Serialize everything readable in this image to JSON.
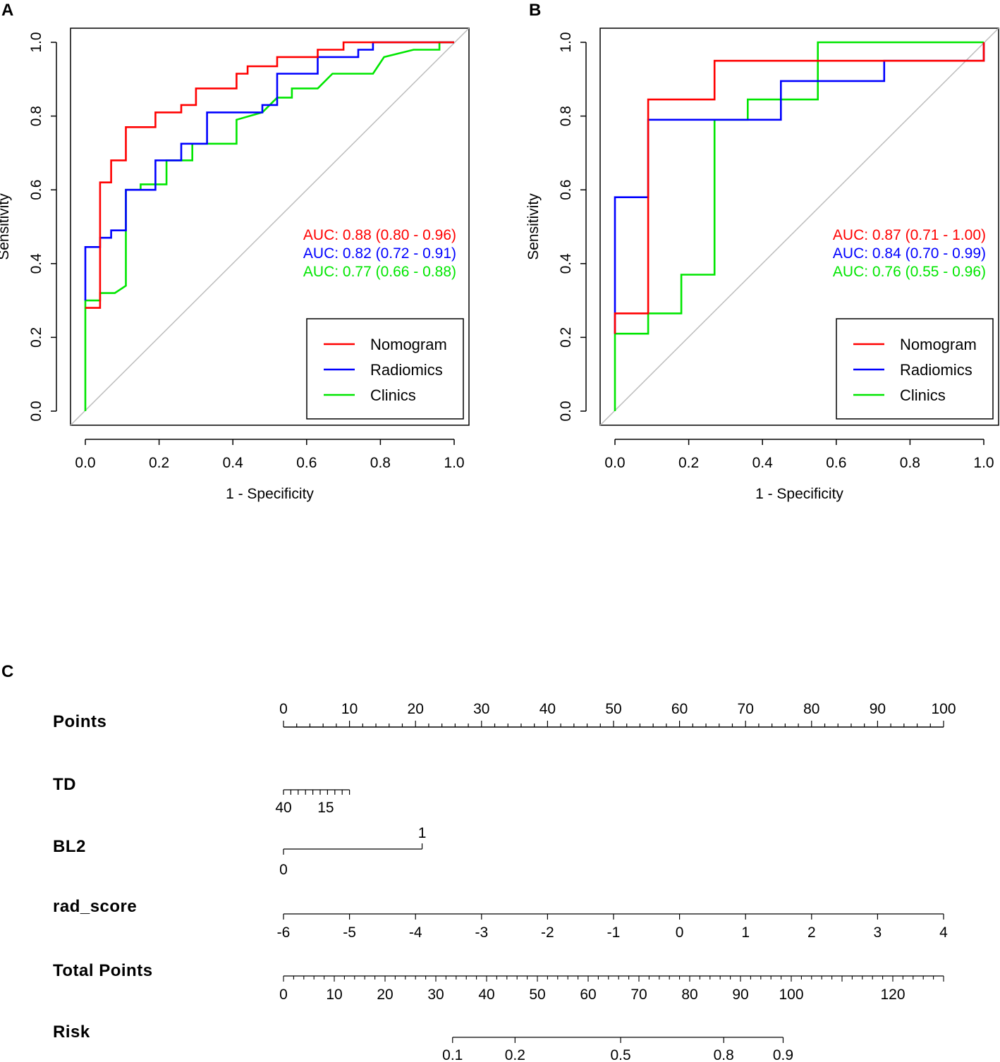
{
  "colors": {
    "nomogram": "#ff0000",
    "radiomics": "#0000ff",
    "clinics": "#00e600",
    "diagonal": "#bdbdbd",
    "axis": "#000000"
  },
  "chart_data": [
    {
      "panel": "A",
      "type": "line",
      "title": "",
      "xlabel": "1 - Specificity",
      "ylabel": "Sensitivity",
      "xlim": [
        0,
        1
      ],
      "ylim": [
        0,
        1
      ],
      "xticks": [
        "0.0",
        "0.2",
        "0.4",
        "0.6",
        "0.8",
        "1.0"
      ],
      "yticks": [
        "0.0",
        "0.2",
        "0.4",
        "0.6",
        "0.8",
        "1.0"
      ],
      "auc_labels": [
        "AUC: 0.88 (0.80 - 0.96)",
        "AUC: 0.82 (0.72 - 0.91)",
        "AUC: 0.77 (0.66 - 0.88)"
      ],
      "legend": [
        "Nomogram",
        "Radiomics",
        "Clinics"
      ],
      "legend_position": "bottom-right",
      "series": [
        {
          "name": "Nomogram",
          "color": "red",
          "points": [
            [
              0,
              0.28
            ],
            [
              0.04,
              0.28
            ],
            [
              0.04,
              0.62
            ],
            [
              0.07,
              0.62
            ],
            [
              0.07,
              0.68
            ],
            [
              0.11,
              0.68
            ],
            [
              0.11,
              0.77
            ],
            [
              0.19,
              0.77
            ],
            [
              0.19,
              0.81
            ],
            [
              0.26,
              0.81
            ],
            [
              0.26,
              0.83
            ],
            [
              0.3,
              0.83
            ],
            [
              0.3,
              0.875
            ],
            [
              0.41,
              0.875
            ],
            [
              0.41,
              0.915
            ],
            [
              0.44,
              0.915
            ],
            [
              0.44,
              0.935
            ],
            [
              0.52,
              0.935
            ],
            [
              0.52,
              0.96
            ],
            [
              0.63,
              0.96
            ],
            [
              0.63,
              0.98
            ],
            [
              0.7,
              0.98
            ],
            [
              0.7,
              1.0
            ],
            [
              1.0,
              1.0
            ]
          ]
        },
        {
          "name": "Radiomics",
          "color": "blue",
          "points": [
            [
              0,
              0.3
            ],
            [
              0,
              0.445
            ],
            [
              0.04,
              0.445
            ],
            [
              0.04,
              0.47
            ],
            [
              0.07,
              0.47
            ],
            [
              0.07,
              0.49
            ],
            [
              0.11,
              0.49
            ],
            [
              0.11,
              0.6
            ],
            [
              0.19,
              0.6
            ],
            [
              0.19,
              0.68
            ],
            [
              0.26,
              0.68
            ],
            [
              0.26,
              0.725
            ],
            [
              0.33,
              0.725
            ],
            [
              0.33,
              0.81
            ],
            [
              0.48,
              0.81
            ],
            [
              0.48,
              0.83
            ],
            [
              0.52,
              0.83
            ],
            [
              0.52,
              0.915
            ],
            [
              0.63,
              0.915
            ],
            [
              0.63,
              0.96
            ],
            [
              0.74,
              0.96
            ],
            [
              0.74,
              0.98
            ],
            [
              0.78,
              0.98
            ],
            [
              0.78,
              1.0
            ],
            [
              1.0,
              1.0
            ]
          ]
        },
        {
          "name": "Clinics",
          "color": "green",
          "points": [
            [
              0,
              0
            ],
            [
              0,
              0.3
            ],
            [
              0.04,
              0.3
            ],
            [
              0.04,
              0.32
            ],
            [
              0.08,
              0.32
            ],
            [
              0.11,
              0.34
            ],
            [
              0.11,
              0.6
            ],
            [
              0.15,
              0.6
            ],
            [
              0.15,
              0.615
            ],
            [
              0.22,
              0.615
            ],
            [
              0.22,
              0.68
            ],
            [
              0.29,
              0.68
            ],
            [
              0.29,
              0.725
            ],
            [
              0.41,
              0.725
            ],
            [
              0.41,
              0.79
            ],
            [
              0.48,
              0.81
            ],
            [
              0.52,
              0.85
            ],
            [
              0.56,
              0.85
            ],
            [
              0.56,
              0.875
            ],
            [
              0.63,
              0.875
            ],
            [
              0.67,
              0.915
            ],
            [
              0.78,
              0.915
            ],
            [
              0.81,
              0.96
            ],
            [
              0.89,
              0.98
            ],
            [
              0.96,
              0.98
            ],
            [
              0.96,
              1.0
            ],
            [
              1.0,
              1.0
            ]
          ]
        }
      ]
    },
    {
      "panel": "B",
      "type": "line",
      "title": "",
      "xlabel": "1 - Specificity",
      "ylabel": "Sensitivity",
      "xlim": [
        0,
        1
      ],
      "ylim": [
        0,
        1
      ],
      "xticks": [
        "0.0",
        "0.2",
        "0.4",
        "0.6",
        "0.8",
        "1.0"
      ],
      "yticks": [
        "0.0",
        "0.2",
        "0.4",
        "0.6",
        "0.8",
        "1.0"
      ],
      "auc_labels": [
        "AUC: 0.87 (0.71 - 1.00)",
        "AUC: 0.84 (0.70 - 0.99)",
        "AUC: 0.76 (0.55 - 0.96)"
      ],
      "legend": [
        "Nomogram",
        "Radiomics",
        "Clinics"
      ],
      "legend_position": "bottom-right",
      "series": [
        {
          "name": "Nomogram",
          "color": "red",
          "points": [
            [
              0,
              0.21
            ],
            [
              0,
              0.265
            ],
            [
              0.09,
              0.265
            ],
            [
              0.09,
              0.845
            ],
            [
              0.27,
              0.845
            ],
            [
              0.27,
              0.95
            ],
            [
              1.0,
              0.95
            ],
            [
              1.0,
              1.0
            ]
          ]
        },
        {
          "name": "Radiomics",
          "color": "blue",
          "points": [
            [
              0,
              0.21
            ],
            [
              0,
              0.58
            ],
            [
              0.09,
              0.58
            ],
            [
              0.09,
              0.79
            ],
            [
              0.45,
              0.79
            ],
            [
              0.45,
              0.895
            ],
            [
              0.73,
              0.895
            ],
            [
              0.73,
              0.95
            ],
            [
              1.0,
              0.95
            ],
            [
              1.0,
              1.0
            ]
          ]
        },
        {
          "name": "Clinics",
          "color": "green",
          "points": [
            [
              0,
              0
            ],
            [
              0,
              0.21
            ],
            [
              0.09,
              0.21
            ],
            [
              0.09,
              0.265
            ],
            [
              0.18,
              0.265
            ],
            [
              0.18,
              0.37
            ],
            [
              0.27,
              0.37
            ],
            [
              0.27,
              0.79
            ],
            [
              0.36,
              0.79
            ],
            [
              0.36,
              0.845
            ],
            [
              0.55,
              0.845
            ],
            [
              0.55,
              1.0
            ],
            [
              1.0,
              1.0
            ]
          ]
        }
      ]
    },
    {
      "panel": "C",
      "type": "nomogram",
      "rows": [
        {
          "label": "Points",
          "scale": "points",
          "start": 0,
          "end": 100,
          "tick_labels": [
            "0",
            "10",
            "20",
            "30",
            "40",
            "50",
            "60",
            "70",
            "80",
            "90",
            "100"
          ]
        },
        {
          "label": "TD",
          "start_points": 0,
          "end_points": 10,
          "tick_labels": [
            "40",
            "15"
          ],
          "tick_label_points": [
            0,
            6.4
          ],
          "minor_ticks": 9
        },
        {
          "label": "BL2",
          "start_points": 0,
          "end_points": 21,
          "tick_labels": [
            "0",
            "1"
          ],
          "tick_label_points": [
            0,
            21
          ]
        },
        {
          "label": "rad_score",
          "start_points": 0,
          "end_points": 100,
          "tick_labels": [
            "-6",
            "-5",
            "-4",
            "-3",
            "-2",
            "-1",
            "0",
            "1",
            "2",
            "3",
            "4"
          ]
        },
        {
          "label": "Total Points",
          "start_points": 0,
          "end_points": 130,
          "tick_labels": [
            "0",
            "10",
            "20",
            "30",
            "40",
            "50",
            "60",
            "70",
            "80",
            "90",
            "100",
            "120"
          ],
          "tick_values": [
            0,
            10,
            20,
            30,
            40,
            50,
            60,
            70,
            80,
            90,
            100,
            120
          ]
        },
        {
          "label": "Risk",
          "start_total": 33.3,
          "end_total": 98.4,
          "tick_labels": [
            "0.1",
            "0.2",
            "0.5",
            "0.8",
            "0.9"
          ],
          "tick_total_points": [
            33.3,
            45.6,
            66.4,
            86.7,
            98.4
          ]
        }
      ]
    }
  ],
  "panel_labels": [
    "A",
    "B",
    "C"
  ]
}
